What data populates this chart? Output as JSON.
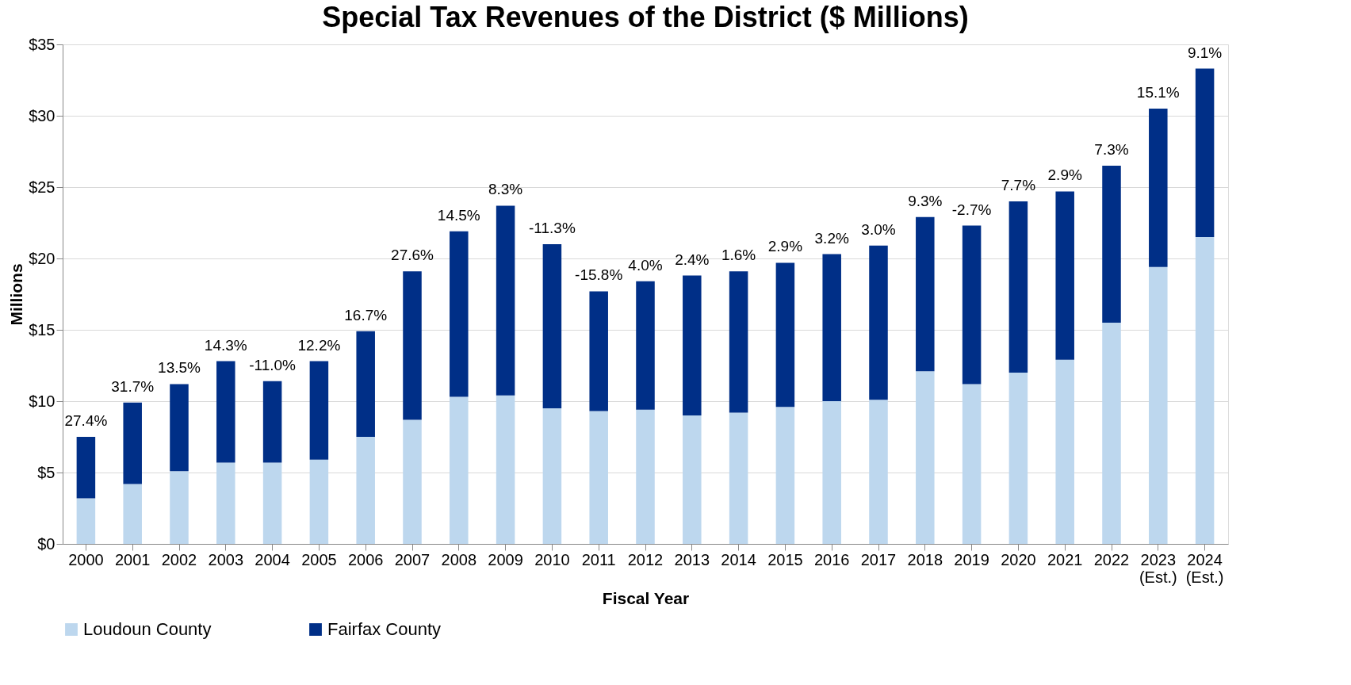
{
  "chart_data": {
    "type": "bar",
    "stacked": true,
    "title": "Special Tax Revenues of the District ($ Millions)",
    "xlabel": "Fiscal Year",
    "ylabel": "Millions",
    "categories": [
      "2000",
      "2001",
      "2002",
      "2003",
      "2004",
      "2005",
      "2006",
      "2007",
      "2008",
      "2009",
      "2010",
      "2011",
      "2012",
      "2013",
      "2014",
      "2015",
      "2016",
      "2017",
      "2018",
      "2019",
      "2020",
      "2021",
      "2022",
      "2023\n(Est.)",
      "2024\n(Est.)"
    ],
    "series": [
      {
        "name": "Loudoun County",
        "color": "#bdd7ee",
        "values": [
          3.2,
          4.2,
          5.1,
          5.7,
          5.7,
          5.9,
          7.5,
          8.7,
          10.3,
          10.4,
          9.5,
          9.3,
          9.4,
          9.0,
          9.2,
          9.6,
          10.0,
          10.1,
          12.1,
          11.2,
          12.0,
          12.9,
          15.5,
          19.4,
          21.5
        ]
      },
      {
        "name": "Fairfax County",
        "color": "#002f87",
        "values": [
          4.3,
          5.7,
          6.1,
          7.1,
          5.7,
          6.9,
          7.4,
          10.4,
          11.6,
          13.3,
          11.5,
          8.4,
          9.0,
          9.8,
          9.9,
          10.1,
          10.3,
          10.8,
          10.8,
          11.1,
          12.0,
          11.8,
          11.0,
          11.1,
          11.8
        ]
      }
    ],
    "ylim": [
      0,
      35
    ],
    "yticks": [
      {
        "value": 0,
        "label": "$0"
      },
      {
        "value": 5,
        "label": "$5"
      },
      {
        "value": 10,
        "label": "$10"
      },
      {
        "value": 15,
        "label": "$15"
      },
      {
        "value": 20,
        "label": "$20"
      },
      {
        "value": 25,
        "label": "$25"
      },
      {
        "value": 30,
        "label": "$30"
      },
      {
        "value": 35,
        "label": "$35"
      }
    ],
    "grid": "y",
    "legend": "bottom",
    "annotations": [
      {
        "text": "27.4%",
        "x": "2000",
        "y": 7.5
      },
      {
        "text": "31.7%",
        "x": "2001",
        "y": 9.9
      },
      {
        "text": "13.5%",
        "x": "2002",
        "y": 11.2
      },
      {
        "text": "14.3%",
        "x": "2003",
        "y": 12.8
      },
      {
        "text": "-11.0%",
        "x": "2004",
        "y": 11.4
      },
      {
        "text": "12.2%",
        "x": "2005",
        "y": 12.8
      },
      {
        "text": "16.7%",
        "x": "2006",
        "y": 14.9
      },
      {
        "text": "27.6%",
        "x": "2007",
        "y": 19.1
      },
      {
        "text": "14.5%",
        "x": "2008",
        "y": 21.9
      },
      {
        "text": "8.3%",
        "x": "2009",
        "y": 23.7
      },
      {
        "text": "-11.3%",
        "x": "2010",
        "y": 21.0
      },
      {
        "text": "-15.8%",
        "x": "2011",
        "y": 17.7
      },
      {
        "text": "4.0%",
        "x": "2012",
        "y": 18.4
      },
      {
        "text": "2.4%",
        "x": "2013",
        "y": 18.8
      },
      {
        "text": "1.6%",
        "x": "2014",
        "y": 19.1
      },
      {
        "text": "2.9%",
        "x": "2015",
        "y": 19.7
      },
      {
        "text": "3.2%",
        "x": "2016",
        "y": 20.3
      },
      {
        "text": "3.0%",
        "x": "2017",
        "y": 20.9
      },
      {
        "text": "9.3%",
        "x": "2018",
        "y": 22.9
      },
      {
        "text": "-2.7%",
        "x": "2019",
        "y": 22.3
      },
      {
        "text": "7.7%",
        "x": "2020",
        "y": 24.0
      },
      {
        "text": "2.9%",
        "x": "2021",
        "y": 24.7
      },
      {
        "text": "7.3%",
        "x": "2022",
        "y": 26.5
      },
      {
        "text": "15.1%",
        "x": "2023\n(Est.)",
        "y": 30.5
      },
      {
        "text": "9.1%",
        "x": "2024\n(Est.)",
        "y": 33.3
      }
    ]
  }
}
